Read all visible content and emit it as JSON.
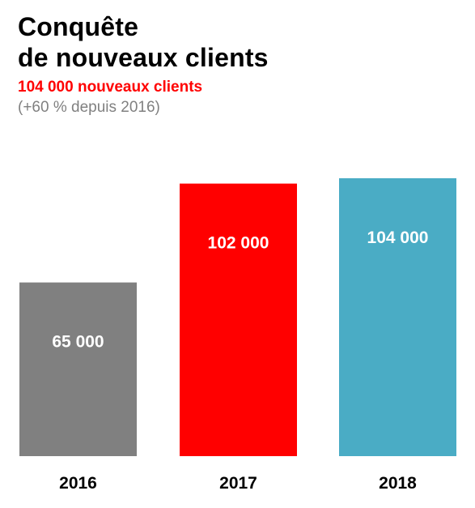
{
  "title_lines": [
    "Conquête",
    "de nouveaux clients"
  ],
  "highlight": "104 000 nouveaux clients",
  "subnote": "(+60 % depuis 2016)",
  "colors": {
    "2016": "#808080",
    "2017": "#ff0000",
    "2018": "#4aacc5",
    "highlight": "#ff0000",
    "subnote": "#808080"
  },
  "chart_data": {
    "type": "bar",
    "title": "Conquête de nouveaux clients",
    "categories": [
      "2016",
      "2017",
      "2018"
    ],
    "values": [
      65000,
      102000,
      104000
    ],
    "value_labels": [
      "65 000",
      "102 000",
      "104 000"
    ],
    "bar_colors": [
      "#808080",
      "#ff0000",
      "#4aacc5"
    ],
    "ylim": [
      0,
      104000
    ],
    "grid": false,
    "legend": "none",
    "xlabel": "",
    "ylabel": ""
  }
}
